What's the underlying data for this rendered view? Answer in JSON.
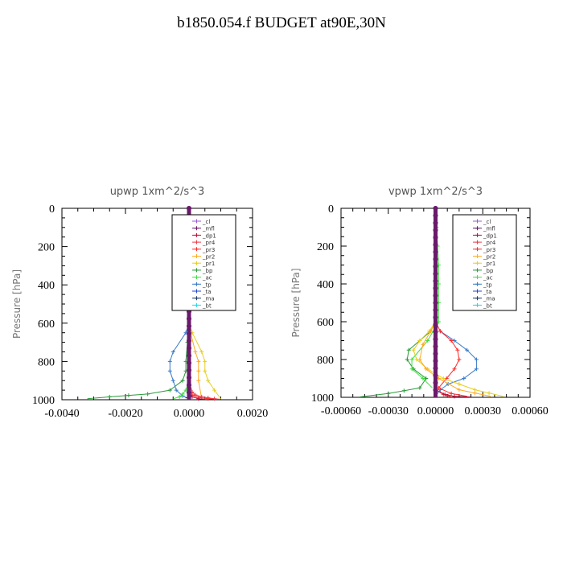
{
  "page": {
    "title": "b1850.054.f  BUDGET at90E,30N"
  },
  "legend_labels": [
    "_cl",
    "_mfl",
    "_dp1",
    "_pr4",
    "_pr3",
    "_pr2",
    "_pr1",
    "_bp",
    "_ac",
    "_tp",
    "_ta",
    "_ma",
    "_bt"
  ],
  "colors": {
    "_cl": "#9b59d0",
    "_mfl": "#6a1a6a",
    "_dp1": "#c0103c",
    "_pr4": "#e8404a",
    "_pr3": "#ff2a2a",
    "_pr2": "#ffaa22",
    "_pr1": "#e6d020",
    "_bp": "#2a9a3a",
    "_ac": "#44dd44",
    "_tp": "#3a7ac8",
    "_ta": "#2244cc",
    "_ma": "#1a3a66",
    "_bt": "#22d8e8"
  },
  "chart_data": [
    {
      "type": "line",
      "title": "upwp   1xm^2/s^3",
      "ylabel": "Pressure  [hPa]",
      "xlim": [
        -0.004,
        0.002
      ],
      "ylim": [
        1000,
        0
      ],
      "xticks": [
        -0.004,
        -0.002,
        0.0,
        0.002
      ],
      "xtick_labels": [
        "-0.0040",
        "-0.0020",
        "0.0000",
        "0.0020"
      ],
      "yticks": [
        0,
        200,
        400,
        600,
        800,
        1000
      ],
      "ytick_labels": [
        "0",
        "200",
        "400",
        "600",
        "800",
        "1000"
      ],
      "legend": "top-right",
      "series": [
        {
          "name": "_bp",
          "x": [
            0,
            0,
            -5e-05,
            -0.0001,
            -0.0001,
            -0.0002,
            -0.0006,
            -0.0013,
            -0.0025,
            -0.0032
          ],
          "y": [
            0,
            600,
            700,
            800,
            850,
            900,
            950,
            970,
            985,
            995
          ]
        },
        {
          "name": "_tp",
          "x": [
            0,
            0,
            -0.0001,
            -0.0005,
            -0.0006,
            -0.0006,
            -0.0005,
            -0.0004,
            -0.0002,
            0
          ],
          "y": [
            0,
            600,
            650,
            750,
            800,
            850,
            900,
            950,
            980,
            995
          ]
        },
        {
          "name": "_pr1",
          "x": [
            0,
            0,
            0.0001,
            0.0004,
            0.0005,
            0.0005,
            0.0006,
            0.0008,
            0.001
          ],
          "y": [
            0,
            600,
            650,
            750,
            800,
            850,
            900,
            950,
            995
          ]
        },
        {
          "name": "_pr2",
          "x": [
            0,
            0,
            5e-05,
            0.0002,
            0.0003,
            0.0003,
            0.0003,
            0.0004
          ],
          "y": [
            0,
            600,
            650,
            750,
            800,
            850,
            900,
            995
          ]
        },
        {
          "name": "_ac",
          "x": [
            0,
            0,
            0,
            -0.0001,
            -0.0002,
            -0.0003,
            -0.0005
          ],
          "y": [
            0,
            700,
            900,
            950,
            970,
            985,
            995
          ]
        },
        {
          "name": "_pr4",
          "x": [
            0,
            0,
            0.0001,
            0.0002,
            0.0004,
            0.0006,
            0.0008,
            0.001
          ],
          "y": [
            0,
            900,
            960,
            975,
            985,
            990,
            995,
            998
          ]
        },
        {
          "name": "_pr3",
          "x": [
            0,
            0,
            0.0001,
            0.0003,
            0.0006,
            0.0009
          ],
          "y": [
            0,
            940,
            975,
            988,
            995,
            998
          ]
        },
        {
          "name": "_dp1",
          "x": [
            0,
            0,
            0.0001,
            0.0003,
            0.0005
          ],
          "y": [
            0,
            960,
            985,
            995,
            998
          ]
        },
        {
          "name": "_ta",
          "x": [
            0,
            0,
            2e-05,
            0
          ],
          "y": [
            0,
            950,
            985,
            998
          ]
        },
        {
          "name": "_ma",
          "x": [
            0,
            0,
            -5e-05,
            0
          ],
          "y": [
            0,
            950,
            990,
            998
          ]
        },
        {
          "name": "_bt",
          "x": [
            0,
            0
          ],
          "y": [
            0,
            1000
          ]
        },
        {
          "name": "_cl",
          "x": [
            0,
            0
          ],
          "y": [
            0,
            1000
          ]
        },
        {
          "name": "_mfl",
          "x": [
            0,
            0
          ],
          "y": [
            0,
            1000
          ]
        }
      ]
    },
    {
      "type": "line",
      "title": "vpwp   1xm^2/s^3",
      "ylabel": "Pressure  [hPa]",
      "xlim": [
        -0.0006,
        0.0006
      ],
      "ylim": [
        1000,
        0
      ],
      "xticks": [
        -0.0006,
        -0.0003,
        0.0,
        0.0003,
        0.0006
      ],
      "xtick_labels": [
        "-0.00060",
        "-0.00030",
        "0.00000",
        "0.00030",
        "0.00060"
      ],
      "yticks": [
        0,
        200,
        400,
        600,
        800,
        1000
      ],
      "ytick_labels": [
        "0",
        "200",
        "400",
        "600",
        "800",
        "1000"
      ],
      "legend": "top-right",
      "series": [
        {
          "name": "_tp",
          "x": [
            0,
            0,
            3e-05,
            0.00012,
            0.0002,
            0.00026,
            0.00026,
            0.00018,
            8e-05,
            3e-05,
            0
          ],
          "y": [
            0,
            600,
            650,
            700,
            750,
            800,
            850,
            900,
            930,
            960,
            995
          ]
        },
        {
          "name": "_pr3",
          "x": [
            0,
            0,
            3e-05,
            0.0001,
            0.00014,
            0.00015,
            0.00012,
            7e-05,
            2e-05,
            0.0001,
            0.0002
          ],
          "y": [
            0,
            600,
            650,
            700,
            750,
            800,
            850,
            900,
            950,
            980,
            995
          ]
        },
        {
          "name": "_bp",
          "x": [
            0,
            0,
            -3e-05,
            -0.0001,
            -0.00017,
            -0.00018,
            -0.00014,
            -6e-05,
            -0.0001,
            -0.0003,
            -0.00048
          ],
          "y": [
            0,
            600,
            650,
            700,
            750,
            800,
            850,
            900,
            950,
            980,
            998
          ]
        },
        {
          "name": "_ac",
          "x": [
            0,
            2e-05,
            2e-05,
            2e-05,
            2e-05,
            -5e-05,
            -0.00015,
            -0.00015,
            -8e-05,
            -2e-05
          ],
          "y": [
            0,
            300,
            400,
            500,
            600,
            700,
            800,
            850,
            900,
            950
          ]
        },
        {
          "name": "_pr1",
          "x": [
            0,
            0,
            -4e-05,
            -0.0001,
            -0.00014,
            -0.00012,
            -5e-05,
            5e-05,
            0.00025,
            0.00043
          ],
          "y": [
            0,
            600,
            650,
            700,
            750,
            800,
            850,
            900,
            960,
            995
          ]
        },
        {
          "name": "_pr2",
          "x": [
            0,
            0,
            -3e-05,
            -8e-05,
            -0.0001,
            -6e-05,
            2e-05,
            0.00015,
            0.00035
          ],
          "y": [
            0,
            600,
            650,
            720,
            800,
            850,
            900,
            960,
            995
          ]
        },
        {
          "name": "_pr4",
          "x": [
            0,
            0,
            5e-05,
            8e-05,
            0.0001
          ],
          "y": [
            0,
            960,
            985,
            993,
            998
          ]
        },
        {
          "name": "_dp1",
          "x": [
            0,
            0,
            6e-05,
            0.00012,
            0.00022
          ],
          "y": [
            0,
            960,
            985,
            995,
            998
          ]
        },
        {
          "name": "_bt",
          "x": [
            0,
            0
          ],
          "y": [
            0,
            1000
          ]
        },
        {
          "name": "_cl",
          "x": [
            0,
            0
          ],
          "y": [
            0,
            1000
          ]
        },
        {
          "name": "_mfl",
          "x": [
            0,
            0
          ],
          "y": [
            0,
            1000
          ]
        }
      ]
    }
  ]
}
